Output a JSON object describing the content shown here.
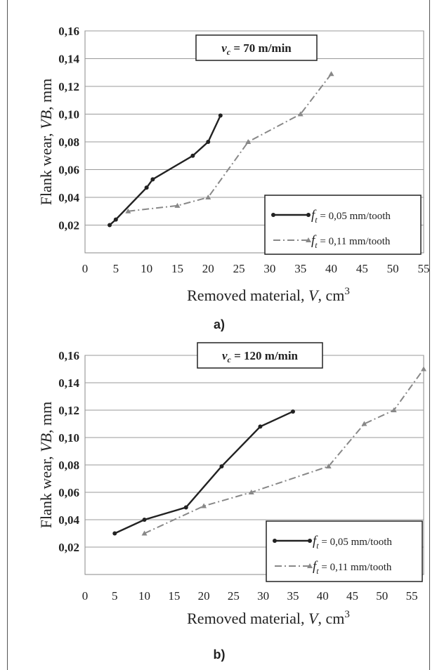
{
  "chart_data": [
    {
      "type": "line",
      "panel_label": "a)",
      "annotation_prefix": "v",
      "annotation_sub": "c",
      "annotation_value": " = 70 m/min",
      "xlabel_text": "Removed material, ",
      "xlabel_var": "V",
      "xlabel_unit": ", cm",
      "xlabel_sup": "3",
      "ylabel_text": "Flank wear, ",
      "ylabel_var": "VB",
      "ylabel_unit": ", mm",
      "xlim": [
        0,
        55
      ],
      "ylim": [
        0,
        0.16
      ],
      "x_ticks": [
        "0",
        "5",
        "10",
        "15",
        "20",
        "25",
        "30",
        "35",
        "40",
        "45",
        "50",
        "55"
      ],
      "y_ticks": [
        "0,02",
        "0,04",
        "0,06",
        "0,08",
        "0,10",
        "0,12",
        "0,14",
        "0,16"
      ],
      "grid": "horizontal",
      "legend_position": "bottom-right",
      "series": [
        {
          "legend_prefix": "f",
          "legend_sub": "t",
          "legend_value": " = 0,05 mm/tooth",
          "style": "solid",
          "marker": "circle",
          "color": "#222222",
          "points": [
            [
              4,
              0.02
            ],
            [
              5,
              0.024
            ],
            [
              10,
              0.047
            ],
            [
              11,
              0.053
            ],
            [
              17.5,
              0.07
            ],
            [
              20,
              0.08
            ],
            [
              22,
              0.099
            ]
          ]
        },
        {
          "legend_prefix": "f",
          "legend_sub": "t",
          "legend_value": " = 0,11 mm/tooth",
          "style": "dashdot",
          "marker": "triangle",
          "color": "#888888",
          "points": [
            [
              7,
              0.03
            ],
            [
              15,
              0.034
            ],
            [
              20,
              0.04
            ],
            [
              26.5,
              0.08
            ],
            [
              35,
              0.1
            ],
            [
              40,
              0.129
            ]
          ]
        }
      ]
    },
    {
      "type": "line",
      "panel_label": "b)",
      "annotation_prefix": "v",
      "annotation_sub": "c",
      "annotation_value": " = 120 m/min",
      "xlabel_text": "Removed material, ",
      "xlabel_var": "V",
      "xlabel_unit": ", cm",
      "xlabel_sup": "3",
      "ylabel_text": "Flank wear, ",
      "ylabel_var": "VB",
      "ylabel_unit": ", mm",
      "xlim": [
        0,
        57
      ],
      "ylim": [
        0,
        0.16
      ],
      "x_ticks": [
        "0",
        "5",
        "10",
        "15",
        "20",
        "25",
        "30",
        "35",
        "40",
        "45",
        "50",
        "55"
      ],
      "y_ticks": [
        "0,02",
        "0,04",
        "0,06",
        "0,08",
        "0,10",
        "0,12",
        "0,14",
        "0,16"
      ],
      "grid": "horizontal",
      "legend_position": "bottom-right",
      "series": [
        {
          "legend_prefix": "f",
          "legend_sub": "t",
          "legend_value": " = 0,05 mm/tooth",
          "style": "solid",
          "marker": "circle",
          "color": "#222222",
          "points": [
            [
              5,
              0.03
            ],
            [
              10,
              0.04
            ],
            [
              17,
              0.049
            ],
            [
              23,
              0.079
            ],
            [
              29.5,
              0.108
            ],
            [
              35,
              0.119
            ]
          ]
        },
        {
          "legend_prefix": "f",
          "legend_sub": "t",
          "legend_value": " = 0,11 mm/tooth",
          "style": "dashdot",
          "marker": "triangle",
          "color": "#888888",
          "points": [
            [
              10,
              0.03
            ],
            [
              20,
              0.05
            ],
            [
              28,
              0.06
            ],
            [
              41,
              0.079
            ],
            [
              47,
              0.11
            ],
            [
              52,
              0.12
            ],
            [
              57,
              0.15
            ]
          ]
        }
      ]
    }
  ]
}
